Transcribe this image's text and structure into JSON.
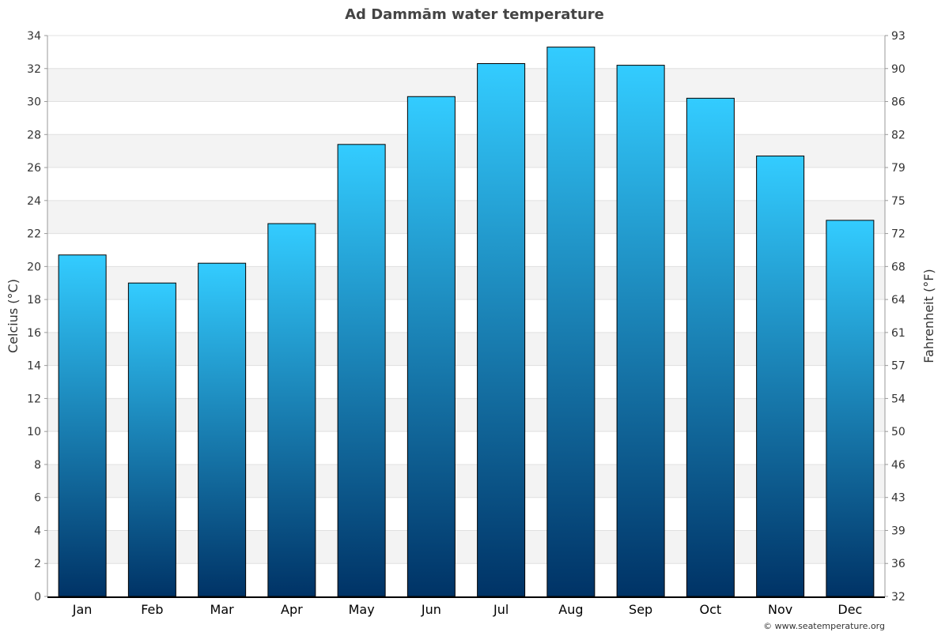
{
  "chart_data": {
    "type": "bar",
    "title": "Ad Dammām water temperature",
    "ylabel": "Celcius (°C)",
    "y2label": "Fahrenheit (°F)",
    "categories": [
      "Jan",
      "Feb",
      "Mar",
      "Apr",
      "May",
      "Jun",
      "Jul",
      "Aug",
      "Sep",
      "Oct",
      "Nov",
      "Dec"
    ],
    "values": [
      20.7,
      19.0,
      20.2,
      22.6,
      27.4,
      30.3,
      32.3,
      33.3,
      32.2,
      30.2,
      26.7,
      22.8
    ],
    "ylim": [
      0,
      34
    ],
    "yticks": [
      0,
      2,
      4,
      6,
      8,
      10,
      12,
      14,
      16,
      18,
      20,
      22,
      24,
      26,
      28,
      30,
      32,
      34
    ],
    "y2ticks": [
      "32",
      "36",
      "39",
      "43",
      "46",
      "50",
      "54",
      "57",
      "61",
      "64",
      "68",
      "72",
      "75",
      "79",
      "82",
      "86",
      "90",
      "93"
    ],
    "grid": true,
    "colors": {
      "bar_top": "#33ccff",
      "bar_bottom": "#003366",
      "band": "#f3f3f3",
      "bar_border": "#000000"
    }
  },
  "credit": "© www.seatemperature.org"
}
